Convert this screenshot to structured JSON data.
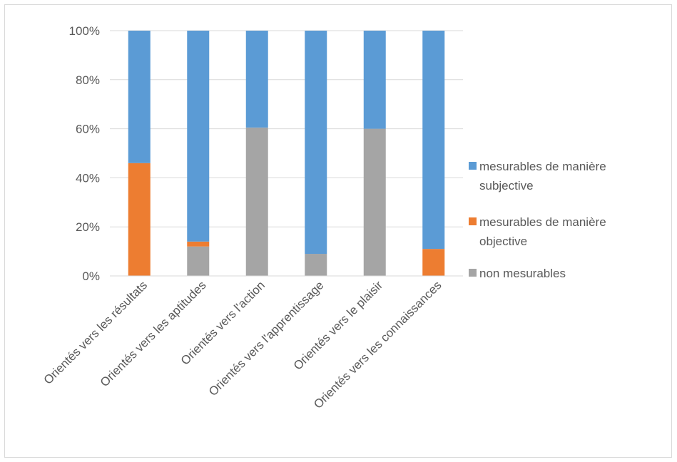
{
  "chart_data": {
    "type": "bar",
    "stacked": true,
    "normalized": true,
    "categories": [
      "Orientés vers les résultats",
      "Orientés vers les aptitudes",
      "Orientés vers l'action",
      "Orientés vers l'apprentissage",
      "Orientés vers le plaisir",
      "Orientés vers les connaissances"
    ],
    "series": [
      {
        "name": "non mesurables",
        "color": "#a5a5a5",
        "values": [
          0,
          12,
          60.5,
          9,
          60,
          0
        ]
      },
      {
        "name": "mesurables de manière objective",
        "color": "#ed7d31",
        "values": [
          46,
          2,
          0,
          0,
          0,
          11
        ]
      },
      {
        "name": "mesurables de manière subjective",
        "color": "#5b9bd5",
        "values": [
          54,
          86,
          39.5,
          91,
          40,
          89
        ]
      }
    ],
    "legend": {
      "position": "right",
      "order": [
        "mesurables de manière subjective",
        "mesurables de manière objective",
        "non mesurables"
      ],
      "lines": [
        [
          "mesurables de manière",
          "subjective"
        ],
        [
          "mesurables de manière",
          "objective"
        ],
        [
          "non mesurables"
        ]
      ]
    },
    "y_ticks": [
      "0%",
      "20%",
      "40%",
      "60%",
      "80%",
      "100%"
    ],
    "ylim": [
      0,
      100
    ],
    "grid": true,
    "title": "",
    "xlabel": "",
    "ylabel": ""
  }
}
